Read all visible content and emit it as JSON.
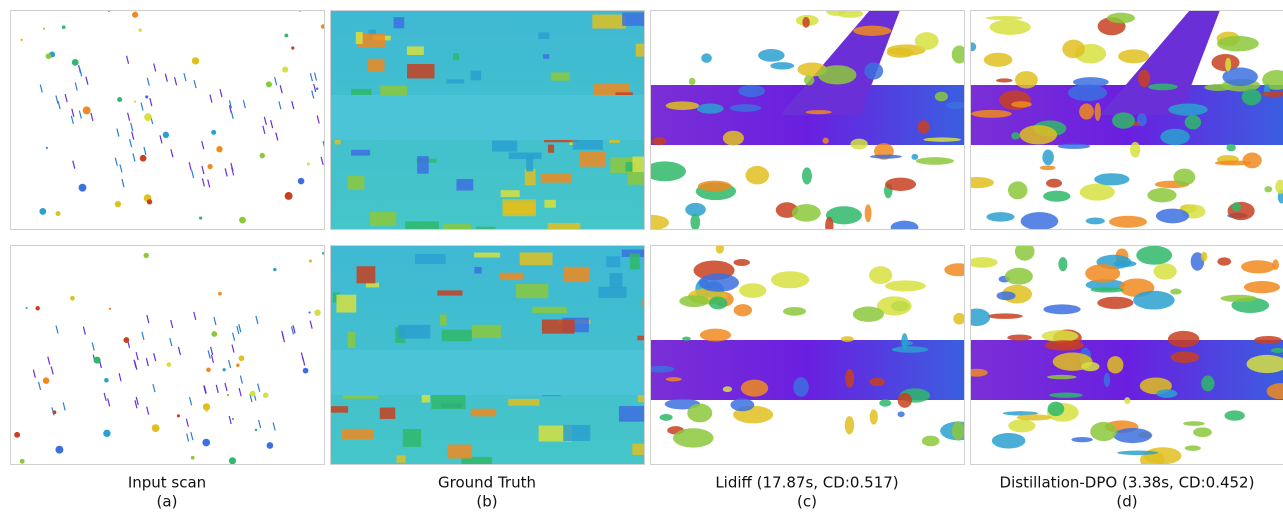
{
  "columns": [
    {
      "caption": "Input scan",
      "label": "(a)"
    },
    {
      "caption": "Ground Truth",
      "label": "(b)"
    },
    {
      "caption": "Lidiff (17.87s, CD:0.517)",
      "label": "(c)"
    },
    {
      "caption": "Distillation-DPO (3.38s, CD:0.452)",
      "label": "(d)"
    }
  ]
}
